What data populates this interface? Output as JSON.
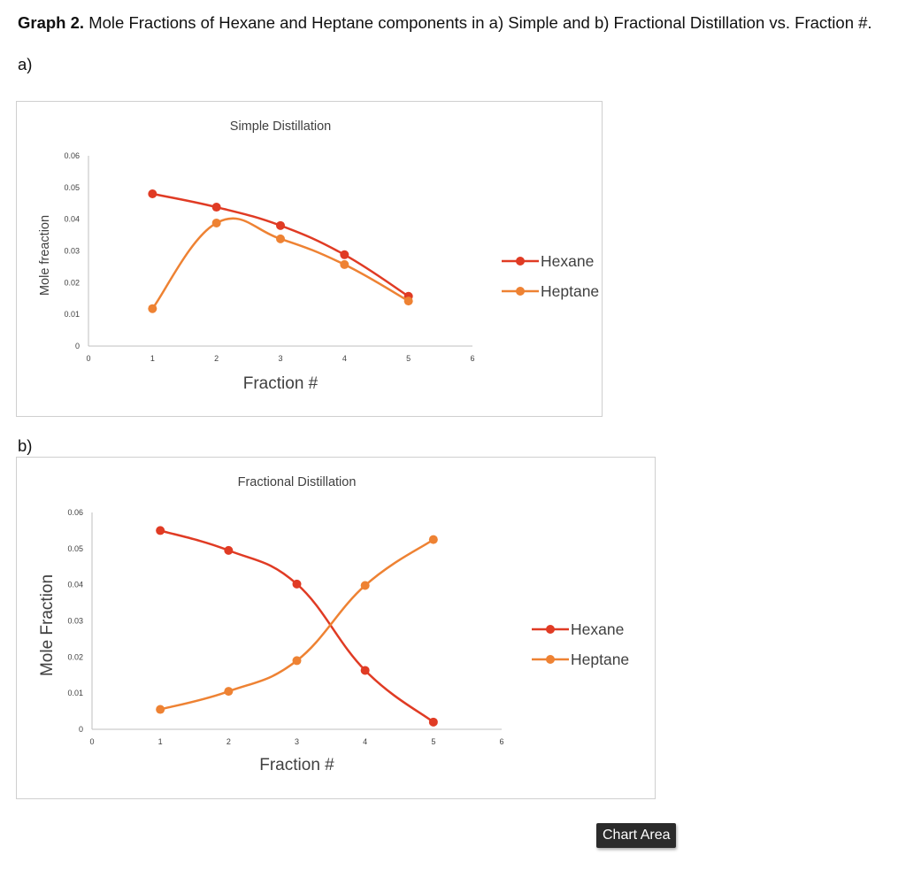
{
  "heading": {
    "bold": "Graph 2.",
    "text": " Mole Fractions of Hexane and Heptane components in a) Simple and b) Fractional Distillation vs. Fraction #."
  },
  "labels": {
    "a": "a)",
    "b": "b)"
  },
  "tooltip": "Chart Area",
  "colors": {
    "hexane": "#e03b24",
    "heptane": "#ee8233",
    "axis": "#bfbfbf",
    "text": "#404040"
  },
  "chart_data": [
    {
      "type": "line",
      "smooth": true,
      "title": "Simple Distillation",
      "xlabel": "Fraction #",
      "ylabel": "Mole freaction",
      "xlim": [
        0,
        6
      ],
      "ylim": [
        0,
        0.06
      ],
      "xticks": [
        "0",
        "1",
        "2",
        "3",
        "4",
        "5",
        "6"
      ],
      "yticks": [
        "0",
        "0.01",
        "0.02",
        "0.03",
        "0.04",
        "0.05",
        "0.06"
      ],
      "grid": false,
      "legend": "right",
      "x": [
        1,
        2,
        3,
        4,
        5
      ],
      "series": [
        {
          "name": "Hexane",
          "color": "#e03b24",
          "values": [
            0.048,
            0.0438,
            0.038,
            0.0288,
            0.0157
          ]
        },
        {
          "name": "Heptane",
          "color": "#ee8233",
          "values": [
            0.0118,
            0.0388,
            0.0338,
            0.0257,
            0.0142
          ]
        }
      ]
    },
    {
      "type": "line",
      "smooth": true,
      "title": "Fractional Distillation",
      "xlabel": "Fraction #",
      "ylabel": "Mole Fraction",
      "xlim": [
        0,
        6
      ],
      "ylim": [
        0,
        0.06
      ],
      "xticks": [
        "0",
        "1",
        "2",
        "3",
        "4",
        "5",
        "6"
      ],
      "yticks": [
        "0",
        "0.01",
        "0.02",
        "0.03",
        "0.04",
        "0.05",
        "0.06"
      ],
      "grid": false,
      "legend": "right",
      "x": [
        1,
        2,
        3,
        4,
        5
      ],
      "series": [
        {
          "name": "Hexane",
          "color": "#e03b24",
          "values": [
            0.055,
            0.0495,
            0.0402,
            0.0163,
            0.002
          ]
        },
        {
          "name": "Heptane",
          "color": "#ee8233",
          "values": [
            0.0055,
            0.0105,
            0.019,
            0.0398,
            0.0525
          ]
        }
      ]
    }
  ]
}
